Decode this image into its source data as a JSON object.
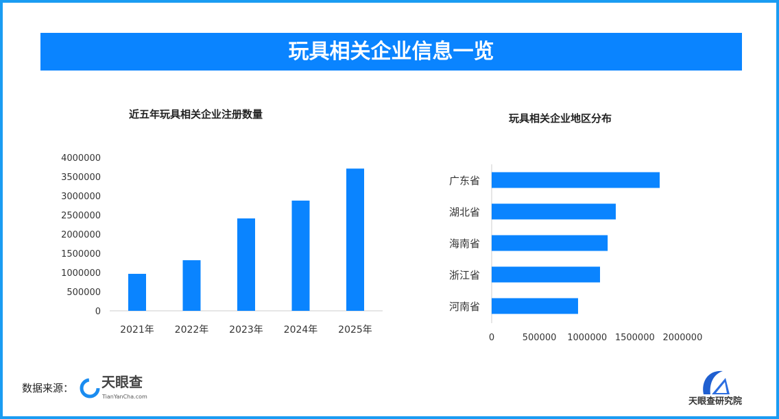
{
  "banner_title": "玩具相关企业信息一览",
  "colors": {
    "frame": "#1a9cf2",
    "banner": "#0a84ff",
    "bar": "#0a84ff"
  },
  "chart_data": [
    {
      "type": "bar",
      "orientation": "vertical",
      "title": "近五年玩具相关企业注册数量",
      "categories": [
        "2021年",
        "2022年",
        "2023年",
        "2024年",
        "2025年"
      ],
      "values": [
        965000,
        1320000,
        2410000,
        2875000,
        3710000
      ],
      "ylim": [
        0,
        4000000
      ],
      "yticks": [
        "0",
        "500000",
        "1000000",
        "1500000",
        "2000000",
        "2500000",
        "3000000",
        "3500000",
        "4000000"
      ],
      "grid": false
    },
    {
      "type": "bar",
      "orientation": "horizontal",
      "title": "玩具相关企业地区分布",
      "categories": [
        "广东省",
        "湖北省",
        "海南省",
        "浙江省",
        "河南省"
      ],
      "values": [
        1760000,
        1300000,
        1215000,
        1135000,
        905000
      ],
      "xlim": [
        0,
        2000000
      ],
      "xticks": [
        "0",
        "500000",
        "1000000",
        "1500000",
        "2000000"
      ],
      "grid": false
    }
  ],
  "footer": {
    "source_label": "数据来源：",
    "source_logo_text": "天眼查",
    "source_logo_sub": "TianYanCha.com",
    "institute": "天眼查研究院"
  }
}
